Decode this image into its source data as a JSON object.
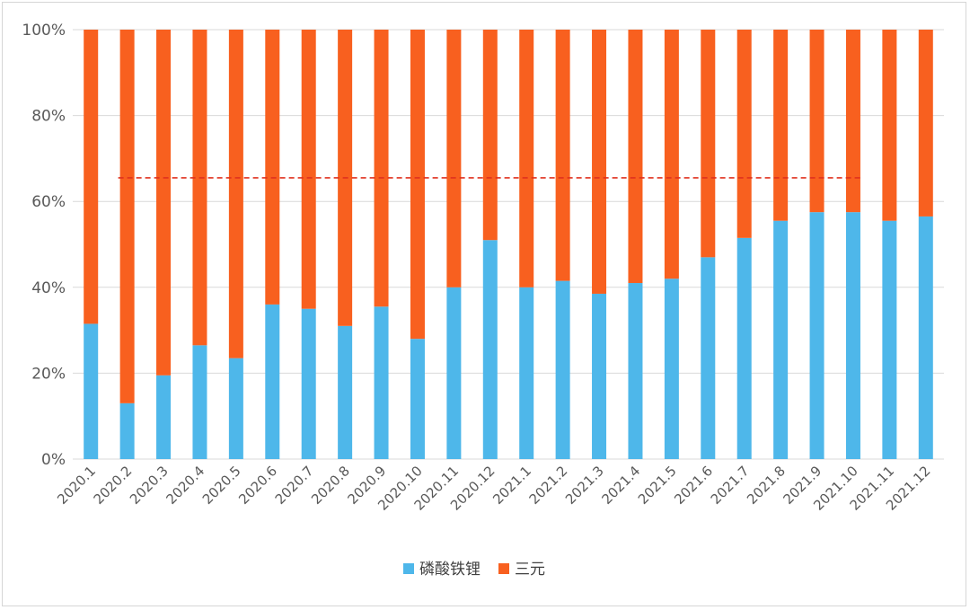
{
  "chart_data": {
    "type": "bar",
    "stacked": true,
    "percent_stacked": true,
    "categories": [
      "2020.1",
      "2020.2",
      "2020.3",
      "2020.4",
      "2020.5",
      "2020.6",
      "2020.7",
      "2020.8",
      "2020.9",
      "2020.10",
      "2020.11",
      "2020.12",
      "2021.1",
      "2021.2",
      "2021.3",
      "2021.4",
      "2021.5",
      "2021.6",
      "2021.7",
      "2021.8",
      "2021.9",
      "2021.10",
      "2021.11",
      "2021.12"
    ],
    "series": [
      {
        "name": "磷酸铁锂",
        "color": "#4eb7ea",
        "values": [
          31.5,
          13,
          19.5,
          26.5,
          23.5,
          36,
          35,
          31,
          35.5,
          28,
          40,
          51,
          40,
          41.5,
          38.5,
          41,
          42,
          47,
          51.5,
          55.5,
          57.5,
          57.5,
          55.5,
          56.5
        ]
      },
      {
        "name": "三元",
        "color": "#f8601f",
        "values": [
          68.5,
          87,
          80.5,
          73.5,
          76.5,
          64,
          65,
          69,
          64.5,
          72,
          60,
          49,
          60,
          58.5,
          61.5,
          59,
          58,
          53,
          48.5,
          44.5,
          42.5,
          42.5,
          44.5,
          43.5
        ]
      }
    ],
    "yticks": [
      "0%",
      "20%",
      "40%",
      "60%",
      "80%",
      "100%"
    ],
    "ylim": [
      0,
      100
    ],
    "grid": true,
    "legend": "bottom-center",
    "reference_line": {
      "value": 65.5,
      "from": "2020.2",
      "to": "2021.10",
      "style": "dashed",
      "color": "#e0301e"
    }
  }
}
